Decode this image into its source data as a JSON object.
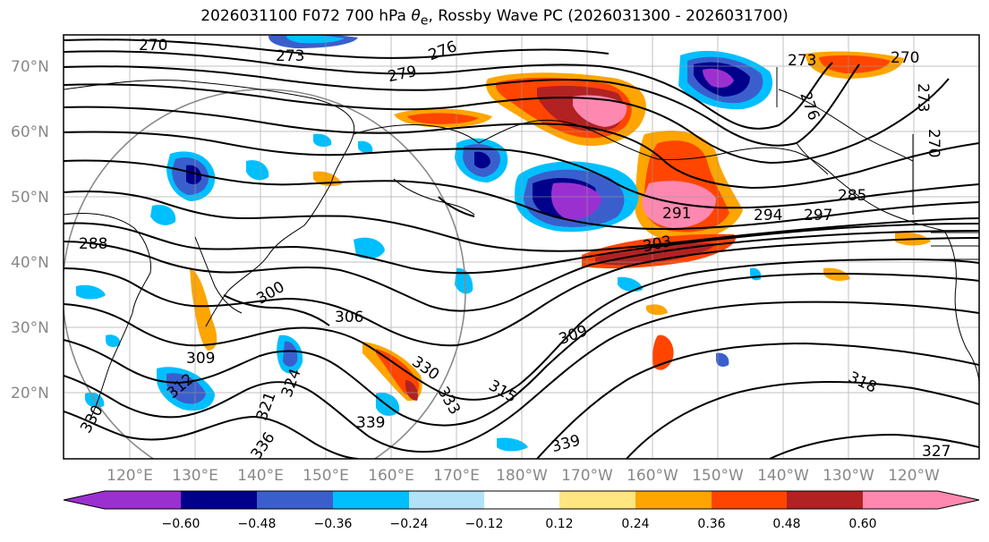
{
  "title": {
    "prefix": "2026031100 F072 700 hPa ",
    "theta": "θ",
    "theta_sub": "e",
    "suffix": ", Rossby Wave PC (2026031300 - 2026031700)"
  },
  "axes": {
    "lat_labels": [
      "70°N",
      "60°N",
      "50°N",
      "40°N",
      "30°N",
      "20°N"
    ],
    "lon_labels": [
      "120°E",
      "130°E",
      "140°E",
      "150°E",
      "160°E",
      "170°E",
      "180°W",
      "170°W",
      "160°W",
      "150°W",
      "140°W",
      "130°W",
      "120°W"
    ]
  },
  "contour_labels": [
    "270",
    "273",
    "276",
    "279",
    "273",
    "270",
    "276",
    "273",
    "270",
    "285",
    "288",
    "291",
    "294",
    "297",
    "303",
    "300",
    "306",
    "309",
    "309",
    "312",
    "315",
    "318",
    "321",
    "324",
    "327",
    "330",
    "330",
    "333",
    "336",
    "339",
    "339"
  ],
  "colorbar": {
    "ticks": [
      "−0.60",
      "−0.48",
      "−0.36",
      "−0.24",
      "−0.12",
      "0.12",
      "0.24",
      "0.36",
      "0.48",
      "0.60"
    ],
    "colors": [
      "#9b30d0",
      "#00008b",
      "#3a5fcd",
      "#00bfff",
      "#b2e2f7",
      "#ffffff",
      "#ffe680",
      "#ffa500",
      "#ff4500",
      "#b22222",
      "#ff88b0",
      "#ff88b0"
    ]
  },
  "colors": {
    "contour": "#000000",
    "grid": "#999999",
    "coast": "#000000"
  }
}
